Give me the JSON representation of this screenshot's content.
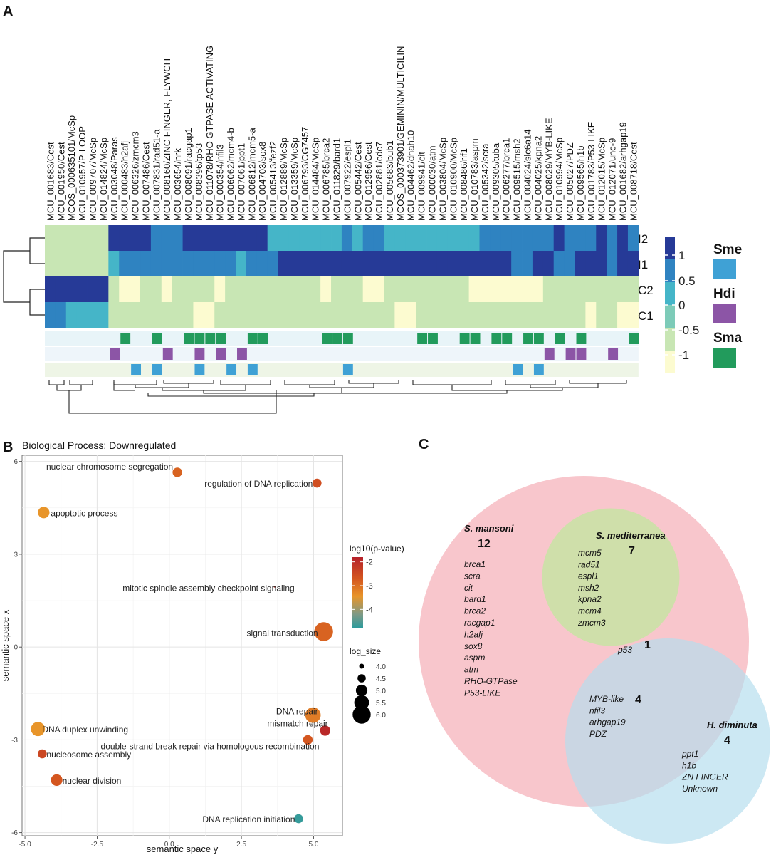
{
  "panels": {
    "a": "A",
    "b": "B",
    "c": "C"
  },
  "heatmap": {
    "genes": [
      "MCU_001683/Cest",
      "MCU_001950/Cest",
      "MCOS_000635101/McSp",
      "MCU_010957/P-LOOP",
      "MCU_009707/McSp",
      "MCU_014824/McSp",
      "MCU_003048/Paras",
      "MCU_000483/h2afj",
      "MCU_006326/zmcm3",
      "MCU_007486/Cest",
      "MCU_007831/rad51-a",
      "MCU_008160/ZINC FINGER, FLYWCH",
      "MCU_003654/nrk",
      "MCU_008091/racgap1",
      "MCU_008396/tp53",
      "MCU_011078/RHO GTPASE ACTIVATING",
      "MCU_000354/nfil3",
      "MCU_006062/mcm4-b",
      "MCU_007061/ppt1",
      "MCU_006812/mcm5-a",
      "MCU_004703/sox8",
      "MCU_005413/fezf2",
      "MCU_012889/McSp",
      "MCU_013359/McSp",
      "MCU_006793/CG7457",
      "MCU_014484/McSp",
      "MCU_006785/brca2",
      "MCU_011829/bard1",
      "MCU_007922/espl1",
      "MCU_005442/Cest",
      "MCU_012956/Cest",
      "MCU_002881/cdc7",
      "MCU_005683/bub1",
      "MCOS_000373901/GEMININ/MULTICILIN",
      "MCU_004462/dnah10",
      "MCU_009941/cit",
      "MCU_000030/atm",
      "MCU_003804/McSp",
      "MCU_010900/McSp",
      "MCU_008486/rif1",
      "MCU_010783/aspm",
      "MCU_005342/scra",
      "MCU_009305/tuba",
      "MCU_006277/brca1",
      "MCU_009515/msh2",
      "MCU_004024/slc6a14",
      "MCU_004025/kpna2",
      "MCU_008029/MYB-LIKE",
      "MCU_010994/McSp",
      "MCU_005027/PDZ",
      "MCU_009565/h1b",
      "MCU_001783/P53-LIKE",
      "MCU_012015/McSp",
      "MCU_012071/unc-9",
      "MCU_001682/arhgap19",
      "MCU_008718/Cest"
    ],
    "rows": [
      "I2",
      "I1",
      "C2",
      "C1"
    ],
    "values": [
      [
        -0.5,
        -0.5,
        -0.5,
        -0.5,
        -0.5,
        -0.5,
        1,
        1,
        1,
        1,
        0.6,
        0.6,
        0.6,
        1,
        1,
        1,
        1,
        1,
        1,
        1,
        1,
        0.3,
        0.2,
        0.2,
        0.2,
        0.2,
        0.2,
        0.2,
        0.6,
        0.2,
        0.6,
        0.6,
        0.2,
        0.2,
        0.2,
        0.2,
        0.2,
        0.2,
        0.2,
        0.2,
        0.2,
        0.6,
        0.6,
        0.6,
        0.6,
        0.6,
        0.6,
        0.6,
        1,
        0.6,
        0.6,
        0.6,
        1,
        0.6,
        1,
        0.6
      ],
      [
        -0.5,
        -0.5,
        -0.5,
        -0.5,
        -0.5,
        -0.5,
        0.2,
        0.6,
        0.6,
        0.6,
        0.6,
        0.6,
        0.6,
        0.6,
        0.6,
        0.6,
        0.6,
        0.6,
        0.2,
        0.6,
        0.6,
        0.6,
        1,
        1,
        1,
        1,
        1,
        1,
        1,
        1,
        1,
        1,
        1,
        1,
        1,
        1,
        1,
        1,
        1,
        1,
        1,
        1,
        1,
        1,
        0.6,
        0.6,
        1,
        1,
        0.6,
        0.6,
        1,
        1,
        1,
        0.6,
        1,
        1
      ],
      [
        1,
        1,
        1,
        1,
        1,
        1,
        -0.5,
        -1,
        -1,
        -0.5,
        -0.5,
        -1,
        -0.5,
        -0.5,
        -0.5,
        -0.5,
        -1,
        -0.5,
        -0.5,
        -0.5,
        -0.5,
        -0.5,
        -0.5,
        -0.5,
        -0.5,
        -0.5,
        -1,
        -0.5,
        -0.5,
        -0.5,
        -1,
        -1,
        -0.5,
        -0.5,
        -0.5,
        -0.5,
        -0.5,
        -0.5,
        -0.5,
        -0.5,
        -1,
        -1,
        -1,
        -1,
        -1,
        -1,
        -1,
        -0.5,
        -0.5,
        -0.5,
        -0.5,
        -0.5,
        -0.5,
        -0.5,
        -0.5,
        -0.5
      ],
      [
        0.6,
        0.6,
        0.2,
        0.2,
        0.2,
        0.2,
        -0.5,
        -0.5,
        -0.5,
        -0.5,
        -0.5,
        -0.5,
        -0.5,
        -0.5,
        -1,
        -1,
        -0.5,
        -0.5,
        -0.5,
        -0.5,
        -0.5,
        -0.5,
        -0.5,
        -0.5,
        -0.5,
        -0.5,
        -0.5,
        -0.5,
        -0.5,
        -0.5,
        -0.5,
        -0.5,
        -0.5,
        -1,
        -1,
        -0.5,
        -0.5,
        -0.5,
        -0.5,
        -0.5,
        -0.5,
        -0.5,
        -0.5,
        -0.5,
        -0.5,
        -0.5,
        -0.5,
        -0.5,
        -0.5,
        -0.5,
        -0.5,
        -1,
        -0.5,
        -0.5,
        -1,
        -1
      ]
    ],
    "scale_labels": [
      "1",
      "0.5",
      "0",
      "-0.5",
      "-1"
    ],
    "colors": [
      "#263a97",
      "#2f83c1",
      "#45b5c8",
      "#7dcbb8",
      "#c8e6b4",
      "#fcfbd0"
    ],
    "species_legend": [
      {
        "label": "Sme",
        "color": "#3fa1d5"
      },
      {
        "label": "Hdi",
        "color": "#8c55a6"
      },
      {
        "label": "Sma",
        "color": "#229b5c"
      }
    ],
    "annotation_tracks": [
      {
        "species": "Sma",
        "color": "#229b5c",
        "columns": [
          7,
          10,
          13,
          14,
          15,
          16,
          19,
          20,
          26,
          27,
          28,
          35,
          36,
          39,
          40,
          42,
          43,
          45,
          46,
          48,
          50,
          55
        ]
      },
      {
        "species": "Hdi",
        "color": "#8c55a6",
        "columns": [
          6,
          11,
          14,
          16,
          18,
          47,
          49,
          50,
          53
        ]
      },
      {
        "species": "Sme",
        "color": "#3fa1d5",
        "columns": [
          8,
          10,
          14,
          17,
          19,
          28,
          44,
          46
        ]
      }
    ]
  },
  "chart_data": {
    "type": "scatter",
    "title": "Biological Process: Downregulated",
    "xlabel": "semantic space y",
    "ylabel": "semantic space x",
    "xlim": [
      -5.1,
      6.0
    ],
    "ylim": [
      -6.1,
      6.2
    ],
    "xticks": [
      "-5.0",
      "-2.5",
      "0.0",
      "2.5",
      "5.0"
    ],
    "xtick_values": [
      -5.0,
      -2.5,
      0.0,
      2.5,
      5.0
    ],
    "yticks": [
      "6",
      "3",
      "0",
      "-3",
      "-6"
    ],
    "ytick_values": [
      6,
      3,
      0,
      -3,
      -6
    ],
    "grid": true,
    "color_legend_title": "log10(p-value)",
    "color_legend_ticks": [
      "-2",
      "-3",
      "-4"
    ],
    "color_legend_tick_values": [
      -2,
      -3,
      -4
    ],
    "size_legend_title": "log_size",
    "size_legend_values": [
      "4.0",
      "4.5",
      "5.0",
      "5.5",
      "6.0"
    ],
    "size_legend_sizes": [
      4.0,
      4.5,
      5.0,
      5.5,
      6.0
    ],
    "points": [
      {
        "label": "nuclear chromosome segregation",
        "x": 0.28,
        "y": 5.65,
        "log10_p": -2.6,
        "log_size": 4.7
      },
      {
        "label": "regulation of DNA replication",
        "x": 5.12,
        "y": 5.3,
        "log10_p": -2.4,
        "log_size": 4.6
      },
      {
        "label": "apoptotic process",
        "x": -4.35,
        "y": 4.35,
        "log10_p": -3.0,
        "log_size": 5.0
      },
      {
        "label": "mitotic spindle assembly checkpoint signaling",
        "x": 3.65,
        "y": 1.95,
        "log10_p": -2.0,
        "log_size": 3.0
      },
      {
        "label": "signal transduction",
        "x": 5.35,
        "y": 0.5,
        "log10_p": -2.6,
        "log_size": 6.1
      },
      {
        "label": "DNA repair",
        "x": 4.98,
        "y": -2.2,
        "log10_p": -2.8,
        "log_size": 5.6
      },
      {
        "label": "mismatch repair",
        "x": 5.4,
        "y": -2.7,
        "log10_p": -1.9,
        "log_size": 4.8
      },
      {
        "label": "DNA duplex unwinding",
        "x": -4.55,
        "y": -2.65,
        "log10_p": -3.0,
        "log_size": 5.4
      },
      {
        "label": "double-strand break repair via homologous recombination",
        "x": 4.8,
        "y": -3.0,
        "log10_p": -2.5,
        "log_size": 4.7
      },
      {
        "label": "nucleosome assembly",
        "x": -4.4,
        "y": -3.45,
        "log10_p": -2.3,
        "log_size": 4.6
      },
      {
        "label": "nuclear division",
        "x": -3.9,
        "y": -4.3,
        "log10_p": -2.5,
        "log_size": 5.0
      },
      {
        "label": "DNA replication initiation",
        "x": 4.48,
        "y": -5.55,
        "log10_p": -4.7,
        "log_size": 4.6
      }
    ]
  },
  "venn": {
    "mansoni": {
      "name": "S. mansoni",
      "count": "12",
      "genes": [
        "brca1",
        "scra",
        "cit",
        "bard1",
        "brca2",
        "racgap1",
        "h2afj",
        "sox8",
        "aspm",
        "atm",
        "RHO-GTPase",
        "P53-LIKE"
      ]
    },
    "mediterranea": {
      "name": "S. mediterranea",
      "count": "7",
      "genes": [
        "mcm5",
        "rad51",
        "espl1",
        "msh2",
        "kpna2",
        "mcm4",
        "zmcm3"
      ]
    },
    "triple": {
      "count": "1",
      "genes": [
        "p53"
      ]
    },
    "mansoni_diminuta": {
      "count": "4",
      "genes": [
        "MYB-like",
        "nfil3",
        "arhgap19",
        "PDZ"
      ]
    },
    "diminuta": {
      "name": "H. diminuta",
      "count": "4",
      "genes": [
        "ppt1",
        "h1b",
        "ZN FINGER",
        "Unknown"
      ]
    },
    "colors": {
      "mansoni": "#f4a3ad",
      "mediterranea": "#c9e4a5",
      "diminuta": "#b4dded"
    }
  }
}
